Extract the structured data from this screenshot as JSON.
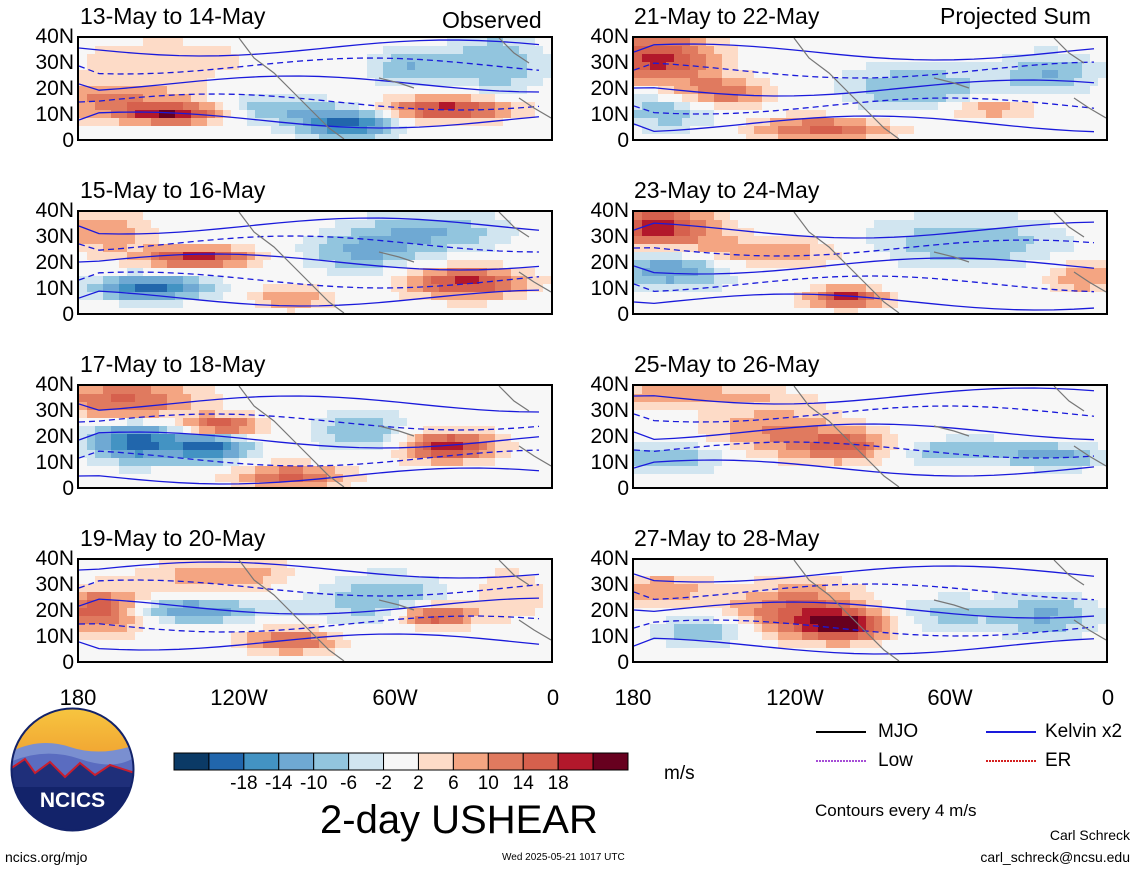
{
  "header": {
    "left_label": "Observed",
    "right_label": "Projected Sum"
  },
  "panels": [
    {
      "title": "13-May to 14-May",
      "col": 0,
      "row": 0
    },
    {
      "title": "15-May to 16-May",
      "col": 0,
      "row": 1
    },
    {
      "title": "17-May to 18-May",
      "col": 0,
      "row": 2
    },
    {
      "title": "19-May to 20-May",
      "col": 0,
      "row": 3
    },
    {
      "title": "21-May to 22-May",
      "col": 1,
      "row": 0
    },
    {
      "title": "23-May to 24-May",
      "col": 1,
      "row": 1
    },
    {
      "title": "25-May to 26-May",
      "col": 1,
      "row": 2
    },
    {
      "title": "27-May to 28-May",
      "col": 1,
      "row": 3
    }
  ],
  "axes": {
    "y_ticks": [
      "40N",
      "30N",
      "20N",
      "10N",
      "0"
    ],
    "x_ticks": [
      "180",
      "120W",
      "60W",
      "0"
    ]
  },
  "colorbar": {
    "ticks": [
      "-18",
      "-14",
      "-10",
      "-6",
      "-2",
      "2",
      "6",
      "10",
      "14",
      "18"
    ],
    "colors": [
      "#0b3a66",
      "#2166ac",
      "#4393c3",
      "#6fa9d3",
      "#92c5de",
      "#d1e5f0",
      "#f7f7f7",
      "#fddbc7",
      "#f4a582",
      "#e07a5f",
      "#d6604d",
      "#b2182b",
      "#67001f"
    ],
    "units": "m/s"
  },
  "figure_title": "2-day USHEAR",
  "legend": {
    "items": [
      {
        "label": "MJO",
        "color": "#000000",
        "style": "solid"
      },
      {
        "label": "Kelvin x2",
        "color": "#1a1adb",
        "style": "solid"
      },
      {
        "label": "Low",
        "color": "#a64dd6",
        "style": "dotted"
      },
      {
        "label": "ER",
        "color": "#d42020",
        "style": "dotted"
      }
    ],
    "contour_note": "Contours every 4 m/s"
  },
  "logo": {
    "text": "NCICS"
  },
  "footer": {
    "url": "ncics.org/mjo",
    "timestamp": "Wed 2025-05-21 1017 UTC",
    "author": "Carl Schreck",
    "email": "carl_schreck@ncsu.edu"
  },
  "chart_data": {
    "type": "heatmap",
    "title": "2-day USHEAR",
    "variable": "USHEAR",
    "units": "m/s",
    "x_range": [
      "180",
      "0"
    ],
    "y_range": [
      "0",
      "40N"
    ],
    "color_levels": [
      -18,
      -14,
      -10,
      -6,
      -2,
      2,
      6,
      10,
      14,
      18
    ],
    "contour_interval": 4,
    "panels_observed": [
      "13-May to 14-May",
      "15-May to 16-May",
      "17-May to 18-May",
      "19-May to 20-May"
    ],
    "panels_projected": [
      "21-May to 22-May",
      "23-May to 24-May",
      "25-May to 26-May",
      "27-May to 28-May"
    ],
    "legend": [
      "MJO",
      "Kelvin x2",
      "Low",
      "ER"
    ]
  }
}
